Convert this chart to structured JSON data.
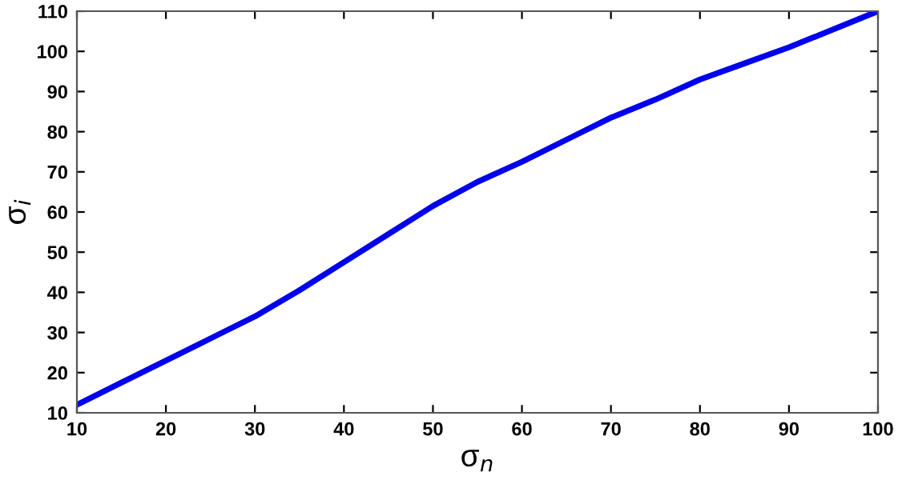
{
  "chart_data": {
    "type": "line",
    "xlabel": "σ$_{n}$",
    "ylabel": "σ$_{i}$",
    "x": [
      10,
      15,
      20,
      25,
      30,
      35,
      40,
      45,
      50,
      55,
      60,
      65,
      70,
      75,
      80,
      85,
      90,
      95,
      100
    ],
    "series": [
      {
        "color": "#0000ee",
        "values": [
          12,
          17.5,
          23,
          28.5,
          34,
          40.5,
          47.5,
          54.5,
          61.5,
          67.5,
          72.5,
          78,
          83.5,
          88,
          93,
          97,
          101,
          105.5,
          110
        ]
      }
    ],
    "xlim": [
      10,
      100
    ],
    "ylim": [
      10,
      110
    ],
    "xticks": [
      10,
      20,
      30,
      40,
      50,
      60,
      70,
      80,
      90,
      100
    ],
    "yticks": [
      10,
      20,
      30,
      40,
      50,
      60,
      70,
      80,
      90,
      100,
      110
    ],
    "grid": false,
    "legend": false,
    "marker": "none",
    "line_style": "solid"
  }
}
